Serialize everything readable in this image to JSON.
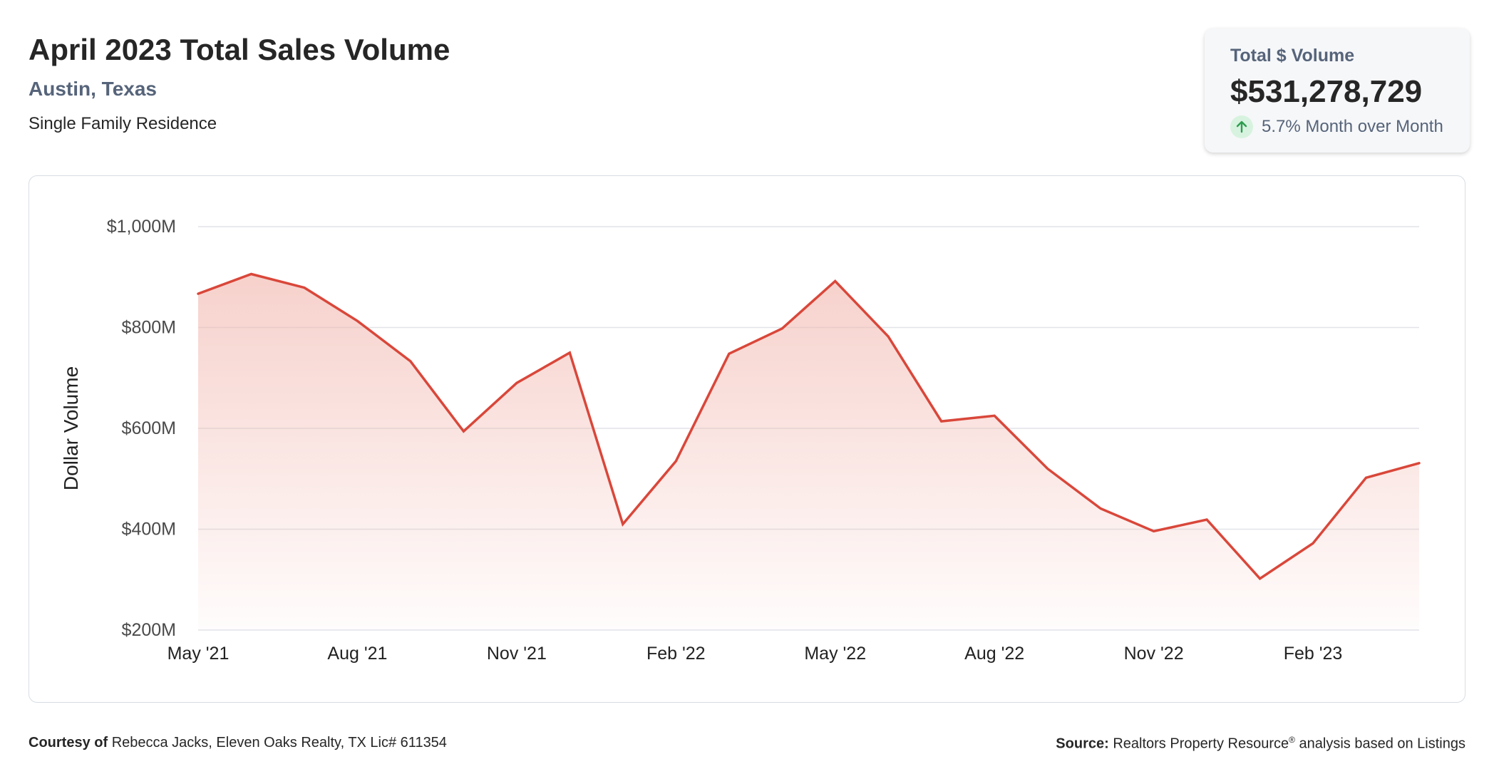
{
  "header": {
    "title": "April 2023 Total Sales Volume",
    "location": "Austin, Texas",
    "property_type": "Single Family Residence"
  },
  "stat_card": {
    "label": "Total $ Volume",
    "value": "$531,278,729",
    "change_text": "5.7% Month over Month",
    "change_icon": "arrow-up-icon",
    "change_color": "#2e9d4f"
  },
  "footer": {
    "courtesy_label": "Courtesy of",
    "courtesy_text": "Rebecca Jacks, Eleven Oaks Realty, TX Lic# 611354",
    "source_label": "Source:",
    "source_text_pre": "Realtors Property Resource",
    "source_sup": "®",
    "source_text_post": "analysis based on Listings"
  },
  "chart_data": {
    "type": "area",
    "ylabel": "Dollar Volume",
    "ylim": [
      200,
      1000
    ],
    "yticks": [
      200,
      400,
      600,
      800,
      1000
    ],
    "ytick_labels": [
      "$200M",
      "$400M",
      "$600M",
      "$800M",
      "$1,000M"
    ],
    "x": [
      "May '21",
      "Jun '21",
      "Jul '21",
      "Aug '21",
      "Sep '21",
      "Oct '21",
      "Nov '21",
      "Dec '21",
      "Jan '22",
      "Feb '22",
      "Mar '22",
      "Apr '22",
      "May '22",
      "Jun '22",
      "Jul '22",
      "Aug '22",
      "Sep '22",
      "Oct '22",
      "Nov '22",
      "Dec '22",
      "Jan '23",
      "Feb '23",
      "Mar '23",
      "Apr '23"
    ],
    "xtick_labels": [
      "May '21",
      "Aug '21",
      "Nov '21",
      "Feb '22",
      "May '22",
      "Aug '22",
      "Nov '22",
      "Feb '23"
    ],
    "series": [
      {
        "values": [
          867,
          906,
          879,
          813,
          733,
          594,
          690,
          750,
          410,
          535,
          748,
          798,
          892,
          782,
          614,
          625,
          520,
          441,
          396,
          419,
          302,
          372,
          502,
          531
        ]
      }
    ],
    "grid": true,
    "line_color": "#d9473a",
    "fill_color": "#f4c6c0"
  }
}
